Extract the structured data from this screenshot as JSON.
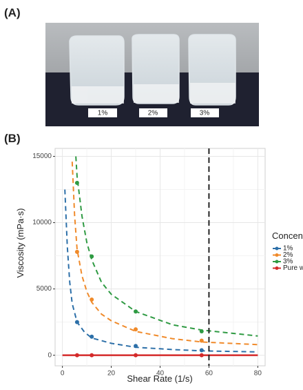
{
  "panel_a": {
    "label": "(A)",
    "beaker_labels": [
      "1%",
      "2%",
      "3%"
    ]
  },
  "panel_b": {
    "label": "(B)"
  },
  "chart_data": {
    "type": "scatter",
    "x_label": "Shear Rate (1/s)",
    "y_label": "Viscosity (mPa·s)",
    "legend_title": "Concentration",
    "legend": "right",
    "x": [
      6,
      12,
      30,
      57
    ],
    "series": [
      {
        "name": "1%",
        "color": "#2c6fa8",
        "values": [
          2500,
          1400,
          700,
          380
        ],
        "fit": {
          "x": [
            1,
            2,
            3,
            4,
            6,
            9,
            12,
            20,
            30,
            45,
            57,
            80
          ],
          "values": [
            12500,
            8200,
            5500,
            3900,
            2500,
            1750,
            1300,
            900,
            600,
            430,
            330,
            250
          ]
        }
      },
      {
        "name": "2%",
        "color": "#f08a2a",
        "values": [
          7800,
          4200,
          1950,
          1100
        ],
        "fit": {
          "x": [
            4,
            5,
            6,
            8,
            10,
            12,
            16,
            20,
            30,
            45,
            57,
            80
          ],
          "values": [
            14600,
            10500,
            8000,
            6000,
            4800,
            4000,
            3100,
            2600,
            1800,
            1250,
            1000,
            800
          ]
        }
      },
      {
        "name": "3%",
        "color": "#2e9a42",
        "values": [
          13000,
          7450,
          3300,
          1800
        ],
        "fit": {
          "x": [
            5.5,
            6,
            8,
            10,
            12,
            16,
            20,
            30,
            45,
            57,
            80
          ],
          "values": [
            15000,
            13500,
            10500,
            8500,
            7200,
            5500,
            4600,
            3300,
            2300,
            1900,
            1450
          ]
        }
      },
      {
        "name": "Pure water",
        "color": "#d42a2a",
        "values": [
          0,
          0,
          0,
          0
        ],
        "fit": {
          "x": [
            0,
            80
          ],
          "values": [
            0,
            0
          ]
        }
      }
    ],
    "vline": 60,
    "xlim": [
      -3,
      83
    ],
    "ylim": [
      -800,
      15600
    ],
    "xticks": [
      0,
      20,
      40,
      60,
      80
    ],
    "yticks": [
      0,
      5000,
      10000,
      15000
    ],
    "x_minor_grid": [
      10,
      30,
      50,
      70
    ],
    "y_minor_grid": [
      2500,
      7500,
      12500
    ],
    "grid": true
  }
}
